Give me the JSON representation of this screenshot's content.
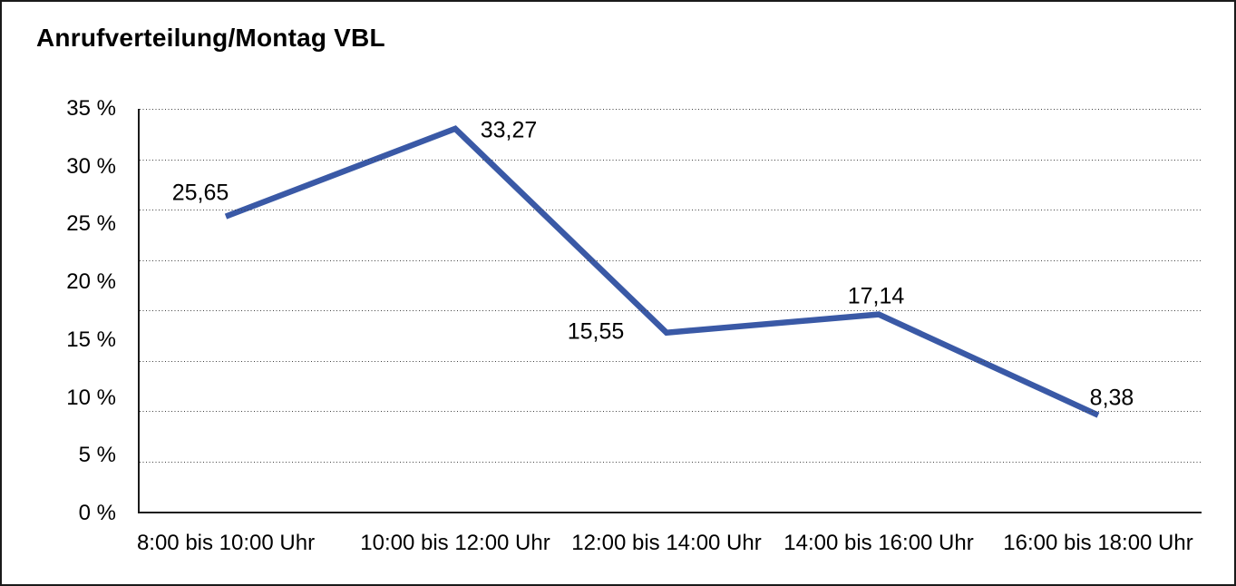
{
  "title": "Anrufverteilung/Montag VBL",
  "chart_data": {
    "type": "line",
    "title": "Anrufverteilung/Montag VBL",
    "categories": [
      "8:00 bis 10:00 Uhr",
      "10:00 bis 12:00 Uhr",
      "12:00 bis 14:00 Uhr",
      "14:00 bis 16:00 Uhr",
      "16:00 bis 18:00 Uhr"
    ],
    "values": [
      25.65,
      33.27,
      15.55,
      17.14,
      8.38
    ],
    "value_labels": [
      "25,65",
      "33,27",
      "15,55",
      "17,14",
      "8,38"
    ],
    "y_tick_labels": [
      "35 %",
      "30 %",
      "25 %",
      "20 %",
      "15 %",
      "10 %",
      "5 %",
      "0 %"
    ],
    "ylim": [
      0,
      35
    ],
    "xlabel": "",
    "ylabel": "",
    "legend": "none",
    "grid": "horizontal-dotted",
    "line_color": "#3A59A6",
    "axis_color": "#1a1a1a",
    "text_color": "#000000",
    "decimal_separator": ","
  }
}
